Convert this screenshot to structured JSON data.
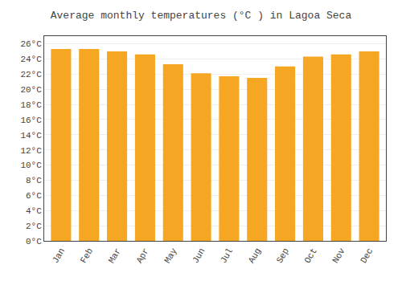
{
  "chart_data": {
    "type": "bar",
    "title": "Average monthly temperatures (°C ) in Lagoa Seca",
    "categories": [
      "Jan",
      "Feb",
      "Mar",
      "Apr",
      "May",
      "Jun",
      "Jul",
      "Aug",
      "Sep",
      "Oct",
      "Nov",
      "Dec"
    ],
    "values": [
      25.3,
      25.3,
      25.0,
      24.6,
      23.3,
      22.1,
      21.7,
      21.5,
      23.0,
      24.3,
      24.6,
      25.0
    ],
    "color": "#F5A623",
    "ylim": [
      0,
      27
    ],
    "yticks": [
      {
        "value": 0,
        "label": "0°C"
      },
      {
        "value": 2,
        "label": "2°C"
      },
      {
        "value": 4,
        "label": "4°C"
      },
      {
        "value": 6,
        "label": "6°C"
      },
      {
        "value": 8,
        "label": "8°C"
      },
      {
        "value": 10,
        "label": "10°C"
      },
      {
        "value": 12,
        "label": "12°C"
      },
      {
        "value": 14,
        "label": "14°C"
      },
      {
        "value": 16,
        "label": "16°C"
      },
      {
        "value": 18,
        "label": "18°C"
      },
      {
        "value": 20,
        "label": "20°C"
      },
      {
        "value": 22,
        "label": "22°C"
      },
      {
        "value": 24,
        "label": "24°C"
      },
      {
        "value": 26,
        "label": "26°C"
      }
    ],
    "grid": true
  }
}
